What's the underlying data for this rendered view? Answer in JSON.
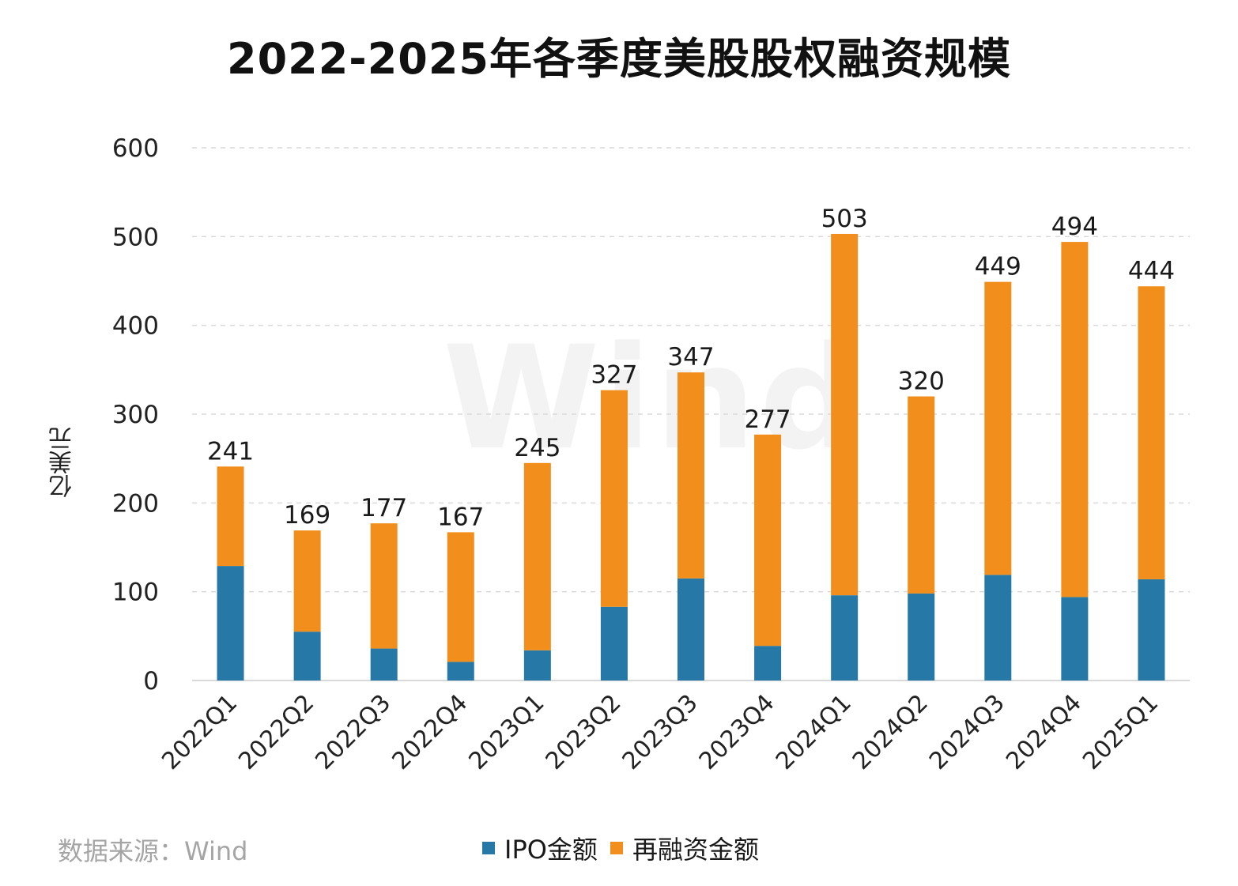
{
  "title": "2022-2025年各季度美股股权融资规模",
  "watermark": "Wind",
  "source_note": "数据来源：Wind",
  "colors": {
    "ipo": "#2679a6",
    "refinancing": "#f28e1c",
    "grid": "#d9d9d9",
    "axis": "#d9d9d9"
  },
  "chart_data": {
    "type": "bar",
    "stacked": true,
    "title": "2022-2025年各季度美股股权融资规模",
    "ylabel": "亿美元",
    "xlabel": "",
    "ylim": [
      0,
      600
    ],
    "yticks": [
      0,
      100,
      200,
      300,
      400,
      500,
      600
    ],
    "grid": true,
    "legend_position": "bottom",
    "categories": [
      "2022Q1",
      "2022Q2",
      "2022Q3",
      "2022Q4",
      "2023Q1",
      "2023Q2",
      "2023Q3",
      "2023Q4",
      "2024Q1",
      "2024Q2",
      "2024Q3",
      "2024Q4",
      "2025Q1"
    ],
    "series": [
      {
        "name": "IPO金额",
        "values": [
          129,
          55,
          36,
          21,
          34,
          83,
          115,
          39,
          96,
          98,
          119,
          94,
          114
        ]
      },
      {
        "name": "再融资金额",
        "values": [
          112,
          114,
          141,
          146,
          211,
          244,
          232,
          238,
          407,
          222,
          330,
          400,
          330
        ]
      }
    ],
    "totals": [
      241,
      169,
      177,
      167,
      245,
      327,
      347,
      277,
      503,
      320,
      449,
      494,
      444
    ]
  }
}
